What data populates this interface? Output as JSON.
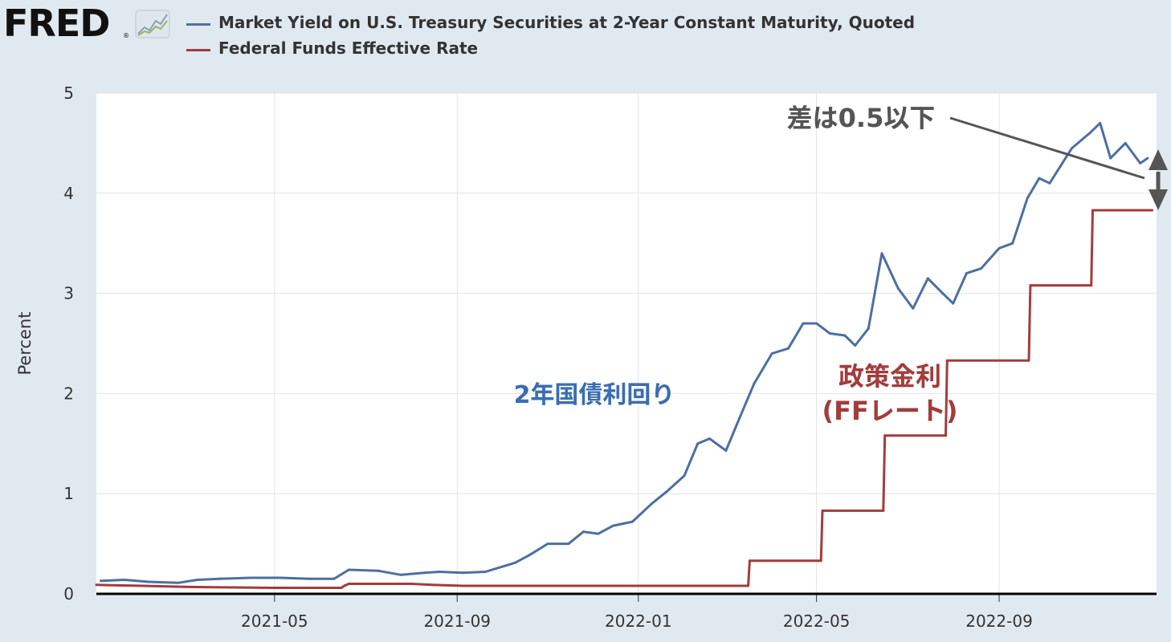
{
  "logo": {
    "text": "FRED",
    "reg": "®",
    "icon": "line-chart-icon"
  },
  "legend": [
    {
      "label": "Market Yield on U.S. Treasury Securities at 2-Year Constant Maturity, Quoted",
      "color": "#4c6fa3"
    },
    {
      "label": "Federal Funds Effective Rate",
      "color": "#a33c3c"
    }
  ],
  "chart_data": {
    "type": "line",
    "ylabel": "Percent",
    "xlabel": "",
    "ylim": [
      0,
      5
    ],
    "yticks": [
      "0",
      "1",
      "2",
      "3",
      "4",
      "5"
    ],
    "xlim": [
      "2021-01-01",
      "2022-12-16"
    ],
    "xticks": [
      "2021-05",
      "2021-09",
      "2022-01",
      "2022-05",
      "2022-09"
    ],
    "grid": true,
    "series": [
      {
        "name": "Market Yield on U.S. Treasury Securities at 2-Year Constant Maturity, Quoted",
        "color": "#4c6fa3",
        "points": [
          [
            "2021-01-04",
            0.13
          ],
          [
            "2021-01-20",
            0.14
          ],
          [
            "2021-02-05",
            0.12
          ],
          [
            "2021-02-25",
            0.11
          ],
          [
            "2021-03-10",
            0.14
          ],
          [
            "2021-03-25",
            0.15
          ],
          [
            "2021-04-15",
            0.16
          ],
          [
            "2021-05-05",
            0.16
          ],
          [
            "2021-05-25",
            0.15
          ],
          [
            "2021-06-10",
            0.15
          ],
          [
            "2021-06-20",
            0.24
          ],
          [
            "2021-07-10",
            0.23
          ],
          [
            "2021-07-25",
            0.19
          ],
          [
            "2021-08-10",
            0.21
          ],
          [
            "2021-08-20",
            0.22
          ],
          [
            "2021-09-05",
            0.21
          ],
          [
            "2021-09-20",
            0.22
          ],
          [
            "2021-10-01",
            0.27
          ],
          [
            "2021-10-10",
            0.31
          ],
          [
            "2021-10-20",
            0.39
          ],
          [
            "2021-11-01",
            0.5
          ],
          [
            "2021-11-15",
            0.5
          ],
          [
            "2021-11-25",
            0.62
          ],
          [
            "2021-12-05",
            0.6
          ],
          [
            "2021-12-15",
            0.68
          ],
          [
            "2021-12-28",
            0.72
          ],
          [
            "2022-01-10",
            0.9
          ],
          [
            "2022-01-20",
            1.02
          ],
          [
            "2022-02-01",
            1.18
          ],
          [
            "2022-02-10",
            1.5
          ],
          [
            "2022-02-18",
            1.55
          ],
          [
            "2022-03-01",
            1.43
          ],
          [
            "2022-03-10",
            1.75
          ],
          [
            "2022-03-20",
            2.1
          ],
          [
            "2022-04-01",
            2.4
          ],
          [
            "2022-04-12",
            2.45
          ],
          [
            "2022-04-22",
            2.7
          ],
          [
            "2022-05-01",
            2.7
          ],
          [
            "2022-05-10",
            2.6
          ],
          [
            "2022-05-20",
            2.58
          ],
          [
            "2022-05-27",
            2.48
          ],
          [
            "2022-06-05",
            2.65
          ],
          [
            "2022-06-14",
            3.4
          ],
          [
            "2022-06-25",
            3.05
          ],
          [
            "2022-07-05",
            2.85
          ],
          [
            "2022-07-15",
            3.15
          ],
          [
            "2022-07-25",
            3.0
          ],
          [
            "2022-08-01",
            2.9
          ],
          [
            "2022-08-10",
            3.2
          ],
          [
            "2022-08-20",
            3.25
          ],
          [
            "2022-09-01",
            3.45
          ],
          [
            "2022-09-10",
            3.5
          ],
          [
            "2022-09-20",
            3.95
          ],
          [
            "2022-09-28",
            4.15
          ],
          [
            "2022-10-05",
            4.1
          ],
          [
            "2022-10-20",
            4.45
          ],
          [
            "2022-11-01",
            4.6
          ],
          [
            "2022-11-08",
            4.7
          ],
          [
            "2022-11-15",
            4.35
          ],
          [
            "2022-11-25",
            4.5
          ],
          [
            "2022-12-05",
            4.3
          ],
          [
            "2022-12-10",
            4.35
          ]
        ]
      },
      {
        "name": "Federal Funds Effective Rate",
        "color": "#a33c3c",
        "points": [
          [
            "2021-01-01",
            0.09
          ],
          [
            "2021-02-01",
            0.08
          ],
          [
            "2021-03-01",
            0.07
          ],
          [
            "2021-05-01",
            0.06
          ],
          [
            "2021-06-15",
            0.06
          ],
          [
            "2021-06-17",
            0.08
          ],
          [
            "2021-06-20",
            0.1
          ],
          [
            "2021-08-01",
            0.1
          ],
          [
            "2021-08-15",
            0.09
          ],
          [
            "2021-09-05",
            0.08
          ],
          [
            "2022-03-16",
            0.08
          ],
          [
            "2022-03-17",
            0.33
          ],
          [
            "2022-05-04",
            0.33
          ],
          [
            "2022-05-05",
            0.83
          ],
          [
            "2022-06-15",
            0.83
          ],
          [
            "2022-06-16",
            1.58
          ],
          [
            "2022-07-27",
            1.58
          ],
          [
            "2022-07-28",
            2.33
          ],
          [
            "2022-09-21",
            2.33
          ],
          [
            "2022-09-22",
            3.08
          ],
          [
            "2022-11-02",
            3.08
          ],
          [
            "2022-11-03",
            3.83
          ],
          [
            "2022-12-13",
            3.83
          ]
        ]
      }
    ],
    "annotations": [
      {
        "text": "差は0.5以下",
        "color": "#555555"
      },
      {
        "text": "2年国債利回り",
        "color": "#3a6db3"
      },
      {
        "text": "政策金利",
        "color": "#a33c3c"
      },
      {
        "text": "(FFレート)",
        "color": "#a33c3c"
      }
    ]
  }
}
